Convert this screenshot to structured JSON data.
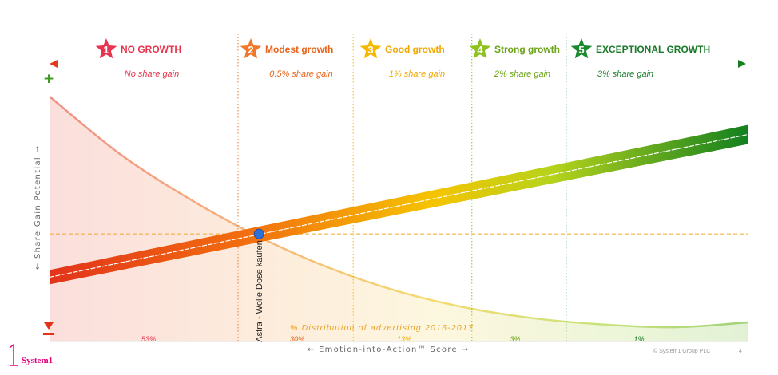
{
  "chart_data": {
    "type": "line",
    "title": "",
    "xlabel": "← Emotion-into-Action™ Score →",
    "ylabel": "← Share Gain Potential →",
    "xlim": [
      0,
      100
    ],
    "ylim": [
      0,
      100
    ],
    "grid": false,
    "legend": "none",
    "categories": [
      {
        "id": 1,
        "name": "NO GROWTH",
        "gain": "No share gain",
        "distribution": "53%",
        "color": "#e8344e",
        "text_color": "#e8344e",
        "gain_color": "#e8344e",
        "start": 0,
        "end": 27
      },
      {
        "id": 2,
        "name": "Modest growth",
        "gain": "0.5% share gain",
        "distribution": "30%",
        "color": "#f0782a",
        "text_color": "#e8641a",
        "gain_color": "#e8641a",
        "start": 27,
        "end": 43.5
      },
      {
        "id": 3,
        "name": "Good growth",
        "gain": "1% share gain",
        "distribution": "13%",
        "color": "#f5b800",
        "text_color": "#f0a800",
        "gain_color": "#f0a800",
        "start": 43.5,
        "end": 60.5
      },
      {
        "id": 4,
        "name": "Strong growth",
        "gain": "2% share gain",
        "distribution": "3%",
        "color": "#8dc21f",
        "text_color": "#6aa315",
        "gain_color": "#6aa315",
        "start": 60.5,
        "end": 74
      },
      {
        "id": 5,
        "name": "EXCEPTIONAL GROWTH",
        "gain": "3% share gain",
        "distribution": "1%",
        "color": "#1a8a2e",
        "text_color": "#1a7a2a",
        "gain_color": "#1a7a2a",
        "start": 74,
        "end": 100
      }
    ],
    "series": [
      {
        "name": "Share gain potential",
        "style": "thick-gradient-band",
        "x": [
          0,
          100
        ],
        "y": [
          21,
          81
        ]
      },
      {
        "name": "% Distribution of advertising 2016-2017",
        "style": "area",
        "x": [
          0,
          10,
          20,
          30,
          40,
          50,
          60,
          70,
          80,
          90,
          100
        ],
        "y": [
          97,
          73,
          54,
          38,
          25,
          15,
          8,
          3.5,
          1,
          0,
          2
        ]
      }
    ],
    "marker": {
      "label": "Astra - Wolle Dose kaufen",
      "x": 30,
      "y": 39.2,
      "color": "#2f6fd8"
    },
    "reference_y": 39.2,
    "distribution_title": "% Distribution of advertising 2016-2017"
  },
  "footer": {
    "brand_mark": "1",
    "brand_name": "System1",
    "copyright": "© System1 Group PLC",
    "page_number": "4"
  },
  "colors": {
    "accent_pink": "#e6007e",
    "line_white": "#ffffff"
  }
}
